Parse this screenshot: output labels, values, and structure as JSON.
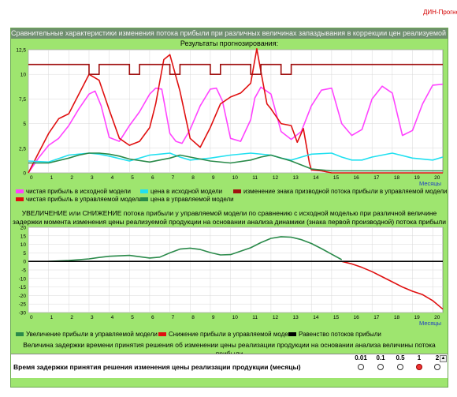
{
  "brand": "ДИН-Прогноз",
  "window_title": "Сравнительные характеристики изменения потока прибыли при различных величинах запаздывания в коррекции цен реализуемой продукции",
  "forecast_title": "Результаты прогнозирования:",
  "colors": {
    "magenta": "#ff44ff",
    "red": "#e01010",
    "darkred": "#a01010",
    "cyan": "#20e0f0",
    "green": "#2a8a4a",
    "black": "#000000"
  },
  "chart_data": [
    {
      "type": "line",
      "xlabel": "Месяцы",
      "ylabel": "",
      "xlim": [
        0,
        20.5
      ],
      "ylim": [
        0,
        12.5
      ],
      "yticks": [
        "0",
        "2,5",
        "5",
        "7,5",
        "10",
        "12,5"
      ],
      "xticks": [
        "0",
        "1",
        "2",
        "3",
        "4",
        "5",
        "6",
        "7",
        "8",
        "9",
        "10",
        "11",
        "12",
        "13",
        "14",
        "15",
        "16",
        "17",
        "18",
        "19",
        "20"
      ],
      "series": [
        {
          "name": "чистая прибыль в исходной модели",
          "color": "#ff44ff",
          "x": [
            0,
            0.5,
            1,
            1.5,
            2,
            2.5,
            3,
            3.3,
            3.6,
            4,
            4.5,
            5,
            5.5,
            6,
            6.3,
            6.6,
            7,
            7.3,
            7.6,
            8,
            8.5,
            9,
            9.3,
            9.6,
            10,
            10.5,
            11,
            11.2,
            11.5,
            12,
            12.5,
            13,
            13.5,
            14,
            14.5,
            15,
            15.5,
            16,
            16.5,
            17,
            17.5,
            18,
            18.5,
            19,
            19.5,
            20,
            20.5
          ],
          "y": [
            0,
            1.5,
            2.8,
            3.5,
            4.8,
            6.5,
            8,
            8.3,
            6.8,
            3.6,
            3.2,
            4.8,
            6.2,
            8,
            8.6,
            8.5,
            4,
            3.2,
            3,
            4.4,
            6.8,
            8.5,
            8.6,
            7.3,
            3.5,
            3.2,
            5.4,
            7.6,
            8.7,
            8,
            4.2,
            3.4,
            4.2,
            6.8,
            8.4,
            8.6,
            5,
            3.8,
            4.4,
            7.5,
            8.8,
            8.1,
            3.8,
            4.3,
            7,
            8.9,
            9
          ]
        },
        {
          "name": "чистая прибыль в управляемой модели",
          "color": "#e01010",
          "x": [
            0,
            0.5,
            1,
            1.5,
            2,
            2.5,
            3,
            3.5,
            4,
            4.5,
            5,
            5.5,
            6,
            6.3,
            6.7,
            7,
            7.5,
            8,
            8.5,
            9,
            9.5,
            10,
            10.5,
            11,
            11.3,
            11.5,
            11.8,
            12,
            12.5,
            13,
            13.3,
            13.6,
            13.9,
            14,
            14.5,
            15,
            16,
            17,
            18,
            19,
            20,
            20.5
          ],
          "y": [
            0,
            2,
            4,
            5.5,
            6,
            8,
            10,
            9.4,
            6.4,
            3.5,
            2.8,
            3.2,
            4.6,
            7,
            11.5,
            12,
            8.3,
            3.5,
            2.6,
            4.6,
            7,
            7.7,
            8.1,
            9.1,
            12.6,
            10.3,
            7,
            6.5,
            5,
            4.8,
            3.1,
            4.5,
            1,
            0.3,
            0.2,
            0,
            0,
            0,
            0,
            0,
            0,
            0
          ]
        },
        {
          "name": "цена в исходной модели",
          "color": "#20e0f0",
          "x": [
            0,
            1,
            2,
            3,
            3.5,
            4,
            5,
            6,
            6.5,
            7,
            7.5,
            8,
            9,
            10,
            11,
            12,
            12.5,
            13,
            14,
            15,
            15.5,
            16,
            16.5,
            17,
            18,
            19,
            20,
            20.5
          ],
          "y": [
            1.2,
            1.1,
            1.8,
            2,
            1.9,
            1.7,
            1.2,
            1.8,
            1.9,
            2,
            1.6,
            1.3,
            1.5,
            1.8,
            2,
            1.8,
            1.5,
            1.3,
            1.9,
            2,
            1.6,
            1.3,
            1.3,
            1.6,
            2,
            1.5,
            1.3,
            1.6
          ]
        },
        {
          "name": "цена в управляемой модели",
          "color": "#2a8a4a",
          "x": [
            0,
            1,
            2,
            2.5,
            3,
            3.5,
            4,
            4.5,
            5,
            6,
            7,
            7.5,
            8,
            9,
            10,
            11,
            11.5,
            12,
            13,
            13.5,
            14,
            15,
            20.5
          ],
          "y": [
            1,
            1,
            1.5,
            1.8,
            2,
            2,
            1.9,
            1.7,
            1.4,
            1.1,
            1.5,
            1.8,
            1.6,
            1.2,
            1,
            1.3,
            1.6,
            1.8,
            1.2,
            0.8,
            0.4,
            0.2,
            0.2
          ]
        },
        {
          "name": "изменение знака призводной потока прибыли в управляемой модели",
          "color": "#a01010",
          "x": [
            0,
            0.5,
            1,
            1.5,
            2,
            2.5,
            3,
            3.5,
            4,
            4.5,
            5,
            5.5,
            6,
            6.5,
            7,
            7.5,
            8,
            8.5,
            9,
            9.5,
            10,
            10.5,
            11,
            11.5,
            12,
            12.5,
            13,
            13.5,
            14,
            14.5,
            15,
            15.5,
            16,
            16.5,
            17,
            17.5,
            18,
            18.5,
            19,
            19.5,
            20,
            20.5
          ],
          "y": [
            11,
            11,
            11,
            11,
            11,
            11,
            10,
            11,
            11,
            11,
            10,
            11,
            11,
            11,
            10,
            11,
            11,
            11,
            10,
            11,
            11,
            11,
            10,
            11,
            11,
            10,
            11,
            11,
            11,
            11,
            11,
            11,
            11,
            11,
            11,
            11,
            11,
            11,
            11,
            11,
            11,
            11
          ]
        }
      ]
    },
    {
      "type": "line",
      "title": "УВЕЛИЧЕНИЕ или СНИЖЕНИЕ потока прибыли у управляемой модели по сравнению с исходной моделью при различной величине задержки момента изменения цены реализуемой продукции на основании анализа динамики (знака первой производной) потока прибыли",
      "xlabel": "Месяцы",
      "ylabel": "",
      "xlim": [
        0,
        20.5
      ],
      "ylim": [
        -30,
        20
      ],
      "yticks": [
        "-30",
        "-25",
        "-20",
        "-15",
        "-10",
        "-5",
        "0",
        "5",
        "10",
        "15",
        "20"
      ],
      "xticks": [
        "0",
        "1",
        "2",
        "3",
        "4",
        "5",
        "6",
        "7",
        "8",
        "9",
        "10",
        "11",
        "12",
        "13",
        "14",
        "15",
        "16",
        "17",
        "18",
        "19",
        "20"
      ],
      "series": [
        {
          "name": "Увеличение прибыли в управляемой модели",
          "color": "#2a8a4a",
          "x": [
            1,
            2,
            3,
            3.5,
            4,
            5,
            6,
            6.5,
            7,
            7.5,
            8,
            8.5,
            9,
            9.5,
            10,
            10.5,
            11,
            11.5,
            12,
            12.5,
            13,
            13.5,
            14,
            14.5,
            15,
            15.5
          ],
          "y": [
            0,
            0.5,
            1.5,
            2.3,
            3,
            3.5,
            2,
            2.5,
            5,
            7.2,
            7.8,
            7,
            5.2,
            3.8,
            4,
            6,
            8,
            11,
            13.5,
            14.5,
            14.2,
            12.8,
            10.5,
            7.5,
            4.2,
            1
          ]
        },
        {
          "name": "Снижение прибыли в управляемой модели",
          "color": "#e01010",
          "x": [
            15.5,
            16,
            16.5,
            17,
            17.5,
            18,
            18.5,
            19,
            19.5,
            20,
            20.5
          ],
          "y": [
            0,
            -1.5,
            -3.5,
            -6,
            -9,
            -12,
            -15,
            -17.5,
            -19.5,
            -23,
            -28
          ]
        },
        {
          "name": "Равенство потоков прибыли",
          "color": "#000000",
          "x": [
            0,
            20.5
          ],
          "y": [
            0,
            0
          ]
        }
      ]
    }
  ],
  "legend1": [
    {
      "label": "чистая прибыль в исходной модели",
      "color": "#ff44ff"
    },
    {
      "label": "цена в исходной модели",
      "color": "#20e0f0"
    },
    {
      "label": "изменение знака призводной потока прибыли в управляемой модели",
      "color": "#a01010"
    },
    {
      "label": "чистая прибыль в управляемой модели",
      "color": "#e01010"
    },
    {
      "label": "цена в управляемой модели",
      "color": "#2a8a4a"
    }
  ],
  "legend2": [
    {
      "label": "Увеличение прибыли в управляемой модели",
      "color": "#2a8a4a"
    },
    {
      "label": "Снижение прибыли в управляемой модели",
      "color": "#e01010"
    },
    {
      "label": "Равенство потоков прибыли",
      "color": "#000000"
    }
  ],
  "delay_caption": "Величина задержки времени принятия решения об изменении цены реализации продукции на основании анализа величины потока прибыли",
  "delay_label": "Время задержки принятия решения изменения цены реализации продукции (месяцы)",
  "delay_options": [
    "0.01",
    "0.1",
    "0.5",
    "1",
    "2"
  ],
  "delay_selected": "1"
}
